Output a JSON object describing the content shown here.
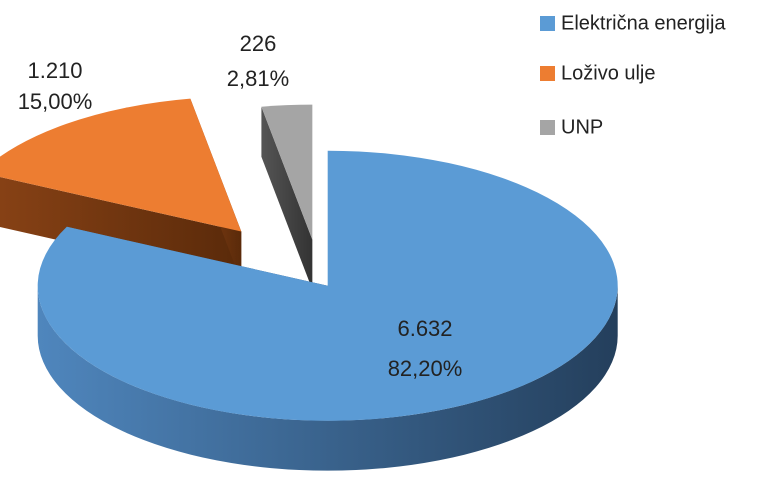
{
  "chart_data": {
    "type": "pie3d",
    "categories": [
      "Električna energija",
      "Loživo ulje",
      "UNP"
    ],
    "values": [
      6632,
      1210,
      226
    ],
    "value_labels": [
      "6.632",
      "1.210",
      "226"
    ],
    "percents": [
      82.2,
      15,
      2.81
    ],
    "percent_labels": [
      "82,20%",
      "15,00%",
      "2,81%"
    ],
    "colors": [
      "#5b9bd5",
      "#ed7d31",
      "#a5a5a5"
    ],
    "legend": "top-right"
  }
}
